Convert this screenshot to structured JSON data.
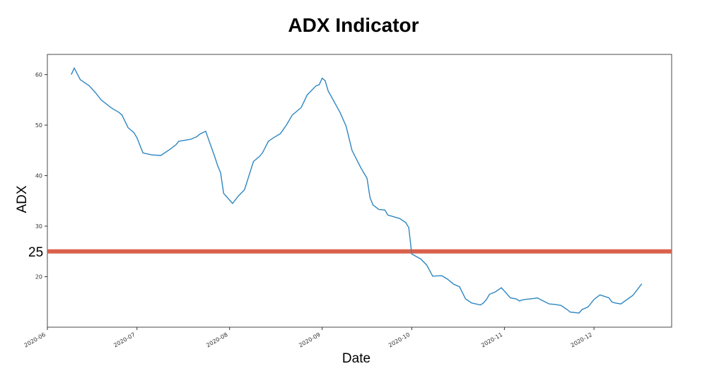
{
  "chart_data": {
    "type": "line",
    "title": "ADX Indicator",
    "xlabel": "Date",
    "ylabel": "ADX",
    "xlim": [
      "2020-06-01",
      "2020-12-27"
    ],
    "ylim": [
      10,
      64
    ],
    "x_ticks": [
      "2020-06",
      "2020-07",
      "2020-08",
      "2020-09",
      "2020-10",
      "2020-11",
      "2020-12"
    ],
    "y_ticks": [
      20,
      30,
      40,
      50,
      60
    ],
    "reference_line": {
      "value": 25,
      "label": "25",
      "color": "#d9614c"
    },
    "line_color": "#2e86c1",
    "grid": false,
    "series": [
      {
        "x": [
          "2020-06-09",
          "2020-06-10",
          "2020-06-12",
          "2020-06-15",
          "2020-06-17",
          "2020-06-19",
          "2020-06-22",
          "2020-06-23",
          "2020-06-25",
          "2020-06-26",
          "2020-06-28",
          "2020-06-30",
          "2020-07-01",
          "2020-07-03",
          "2020-07-06",
          "2020-07-09",
          "2020-07-12",
          "2020-07-14",
          "2020-07-15",
          "2020-07-19",
          "2020-07-21",
          "2020-07-22",
          "2020-07-24",
          "2020-07-27",
          "2020-07-28",
          "2020-07-29",
          "2020-07-30",
          "2020-08-02",
          "2020-08-04",
          "2020-08-06",
          "2020-08-09",
          "2020-08-11",
          "2020-08-12",
          "2020-08-14",
          "2020-08-16",
          "2020-08-18",
          "2020-08-20",
          "2020-08-22",
          "2020-08-25",
          "2020-08-27",
          "2020-08-30",
          "2020-08-31",
          "2020-09-01",
          "2020-09-02",
          "2020-09-03",
          "2020-09-07",
          "2020-09-09",
          "2020-09-11",
          "2020-09-14",
          "2020-09-15",
          "2020-09-16",
          "2020-09-17",
          "2020-09-18",
          "2020-09-20",
          "2020-09-22",
          "2020-09-23",
          "2020-09-27",
          "2020-09-29",
          "2020-09-30",
          "2020-10-01",
          "2020-10-04",
          "2020-10-06",
          "2020-10-08",
          "2020-10-11",
          "2020-10-13",
          "2020-10-15",
          "2020-10-17",
          "2020-10-19",
          "2020-10-21",
          "2020-10-24",
          "2020-10-25",
          "2020-10-26",
          "2020-10-27",
          "2020-10-29",
          "2020-10-31",
          "2020-11-03",
          "2020-11-05",
          "2020-11-06",
          "2020-11-07",
          "2020-11-08",
          "2020-11-11",
          "2020-11-12",
          "2020-11-13",
          "2020-11-15",
          "2020-11-16",
          "2020-11-18",
          "2020-11-20",
          "2020-11-22",
          "2020-11-23",
          "2020-11-26",
          "2020-11-27",
          "2020-11-29",
          "2020-12-01",
          "2020-12-03",
          "2020-12-06",
          "2020-12-07",
          "2020-12-08",
          "2020-12-10",
          "2020-12-14",
          "2020-12-16",
          "2020-12-17"
        ],
        "y": [
          60.0,
          61.3,
          59.0,
          57.8,
          56.5,
          55.0,
          53.6,
          53.2,
          52.5,
          52.0,
          49.5,
          48.5,
          47.5,
          44.5,
          44.1,
          44.0,
          45.2,
          46.1,
          46.8,
          47.2,
          47.7,
          48.2,
          48.8,
          43.8,
          42.0,
          40.6,
          36.5,
          34.5,
          36.0,
          37.2,
          42.8,
          43.8,
          44.5,
          46.8,
          47.6,
          48.3,
          50.0,
          52.0,
          53.5,
          56.0,
          57.8,
          58.0,
          59.3,
          58.8,
          56.8,
          52.5,
          49.8,
          45.0,
          41.5,
          40.5,
          39.5,
          35.7,
          34.2,
          33.3,
          33.2,
          32.2,
          31.5,
          30.7,
          29.7,
          24.5,
          23.5,
          22.3,
          20.1,
          20.2,
          19.5,
          18.5,
          18.0,
          15.6,
          14.8,
          14.4,
          14.8,
          15.5,
          16.5,
          17.0,
          17.8,
          15.8,
          15.6,
          15.2,
          15.4,
          15.5,
          15.7,
          15.8,
          15.5,
          14.9,
          14.6,
          14.5,
          14.3,
          13.5,
          13.0,
          12.8,
          13.5,
          14.0,
          15.5,
          16.4,
          15.8,
          15.0,
          14.8,
          14.6,
          16.3,
          17.8,
          18.6
        ]
      }
    ]
  }
}
